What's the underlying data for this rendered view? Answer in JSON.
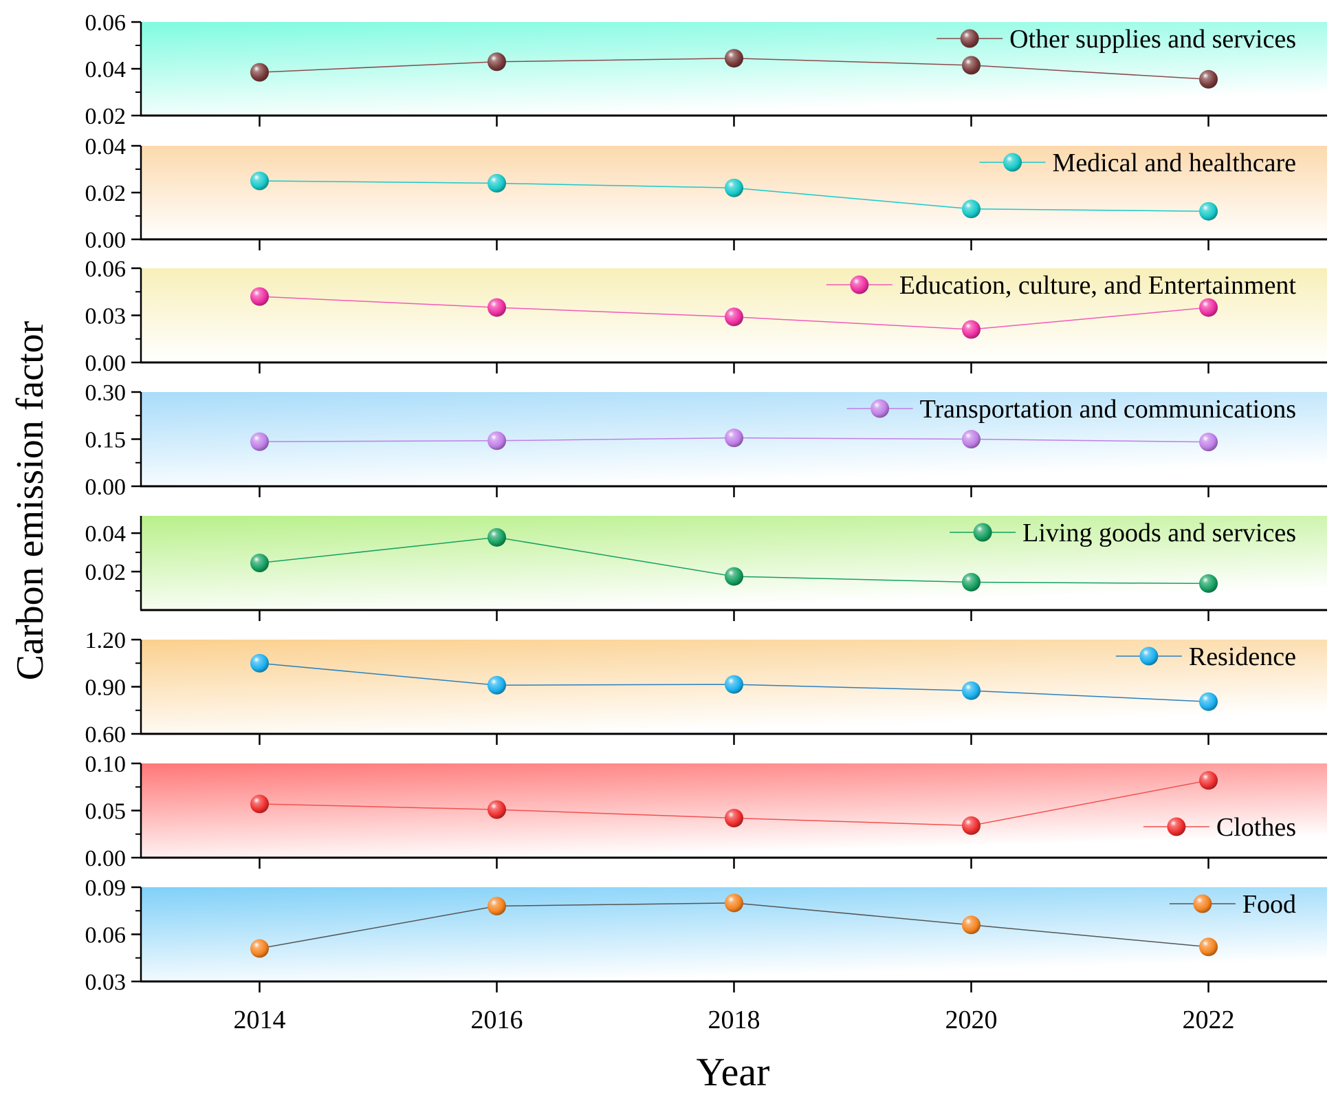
{
  "chart_data": {
    "type": "line",
    "x": [
      2014,
      2016,
      2018,
      2020,
      2022
    ],
    "xlim": [
      2013,
      2023
    ],
    "xticks": [
      "2014",
      "2016",
      "2018",
      "2020",
      "2022"
    ],
    "xlabel": "Year",
    "ylabel": "Carbon emission factor",
    "panels": [
      {
        "name": "Other supplies and services",
        "values": [
          0.0385,
          0.043,
          0.0445,
          0.0415,
          0.0355
        ],
        "ylim": [
          0.02,
          0.06
        ],
        "yticks": [
          "0.02",
          "0.04",
          "0.06"
        ],
        "marker_color": "#7a3b3b",
        "line_color": "#8b4a4a",
        "bg_color": "#7ffbe0",
        "bg_direction": "diagonal",
        "legend_position": "top-right"
      },
      {
        "name": "Medical and healthcare",
        "values": [
          0.025,
          0.024,
          0.022,
          0.013,
          0.012
        ],
        "ylim": [
          0.0,
          0.04
        ],
        "yticks": [
          "0.00",
          "0.02",
          "0.04"
        ],
        "marker_color": "#17c9c9",
        "line_color": "#17c9c9",
        "bg_color": "#fcd9ad",
        "bg_direction": "vertical",
        "legend_position": "top-right"
      },
      {
        "name": "Education, culture, and Entertainment",
        "values": [
          0.042,
          0.035,
          0.029,
          0.021,
          0.035
        ],
        "ylim": [
          0.0,
          0.06
        ],
        "yticks": [
          "0.00",
          "0.03",
          "0.06"
        ],
        "marker_color": "#f02fa3",
        "line_color": "#f25ab8",
        "bg_color": "#f8efb9",
        "bg_direction": "vertical",
        "legend_position": "top-right"
      },
      {
        "name": "Transportation and communications",
        "values": [
          0.142,
          0.145,
          0.154,
          0.15,
          0.141
        ],
        "ylim": [
          0.0,
          0.3
        ],
        "yticks": [
          "0.00",
          "0.15",
          "0.30"
        ],
        "marker_color": "#c07ee8",
        "line_color": "#c07ee8",
        "bg_color": "#a8dcfa",
        "bg_direction": "diagonal",
        "legend_position": "top-right"
      },
      {
        "name": "Living goods and services",
        "values": [
          0.0245,
          0.0378,
          0.0175,
          0.0145,
          0.0138
        ],
        "ylim": [
          0.0,
          0.049
        ],
        "yticks": [
          "0.02",
          "0.04"
        ],
        "ytick_values": [
          0.02,
          0.04
        ],
        "marker_color": "#15a060",
        "line_color": "#15a060",
        "bg_color": "#b8f08a",
        "bg_direction": "diagonal",
        "legend_position": "top-right"
      },
      {
        "name": "Residence",
        "values": [
          1.05,
          0.91,
          0.915,
          0.875,
          0.805
        ],
        "ylim": [
          0.6,
          1.2
        ],
        "yticks": [
          "0.60",
          "0.90",
          "1.20"
        ],
        "marker_color": "#1ab0ef",
        "line_color": "#2a7fc0",
        "bg_color": "#fbd08e",
        "bg_direction": "diagonal",
        "legend_position": "top-right"
      },
      {
        "name": "Clothes",
        "values": [
          0.057,
          0.051,
          0.042,
          0.034,
          0.082
        ],
        "ylim": [
          0.0,
          0.1
        ],
        "yticks": [
          "0.00",
          "0.05",
          "0.10"
        ],
        "marker_color": "#f02d2d",
        "line_color": "#f25050",
        "bg_color": "#ff7777",
        "bg_direction": "diagonal",
        "legend_position": "bottom-right"
      },
      {
        "name": "Food",
        "values": [
          0.051,
          0.078,
          0.08,
          0.066,
          0.052
        ],
        "ylim": [
          0.03,
          0.09
        ],
        "yticks": [
          "0.03",
          "0.06",
          "0.09"
        ],
        "marker_color": "#f5831f",
        "line_color": "#555555",
        "bg_color": "#80d0f8",
        "bg_direction": "diagonal",
        "legend_position": "top-right"
      }
    ]
  }
}
